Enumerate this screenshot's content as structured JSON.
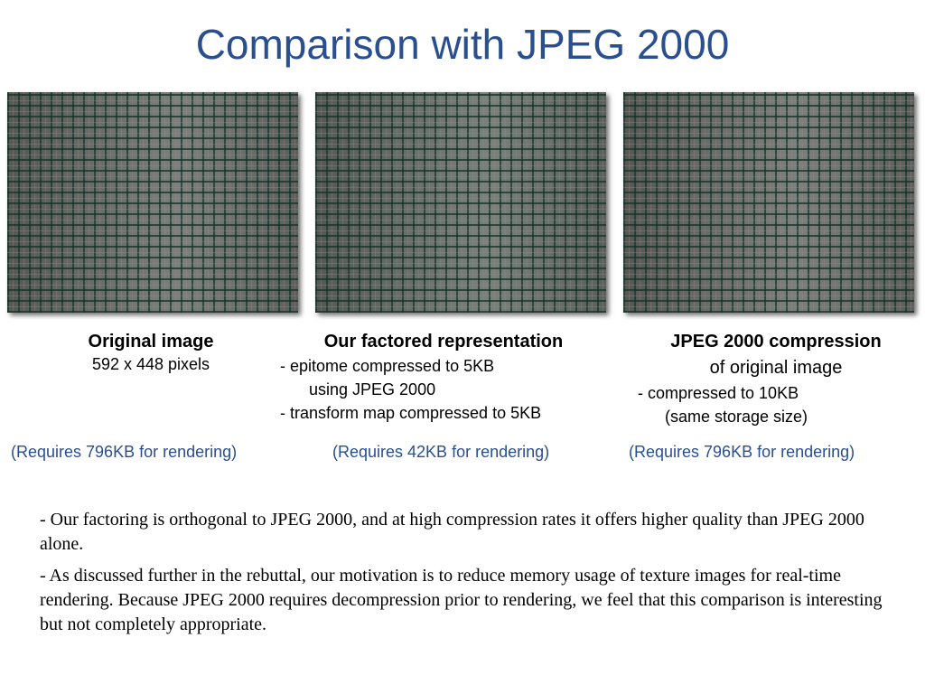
{
  "title": "Comparison with JPEG 2000",
  "panels": [
    {
      "heading": "Original image",
      "lines": [
        "592 x 448 pixels"
      ],
      "note": "(Requires 796KB for rendering)"
    },
    {
      "heading": "Our factored representation",
      "lines": [
        "- epitome compressed to 5KB",
        "using JPEG 2000",
        "- transform map compressed to 5KB"
      ],
      "note": "(Requires 42KB for rendering)"
    },
    {
      "heading": "JPEG 2000 compression",
      "lines": [
        "of original image",
        "- compressed to 10KB",
        "(same storage size)"
      ],
      "note": "(Requires 796KB for rendering)"
    }
  ],
  "bullets": [
    "- Our factoring is orthogonal to JPEG 2000, and at high compression rates it offers higher quality than JPEG 2000 alone.",
    "- As discussed further in the rebuttal, our motivation is to reduce memory usage of texture images for real-time rendering.  Because JPEG 2000 requires decompression prior to rendering, we feel that this comparison is interesting but not completely appropriate."
  ]
}
